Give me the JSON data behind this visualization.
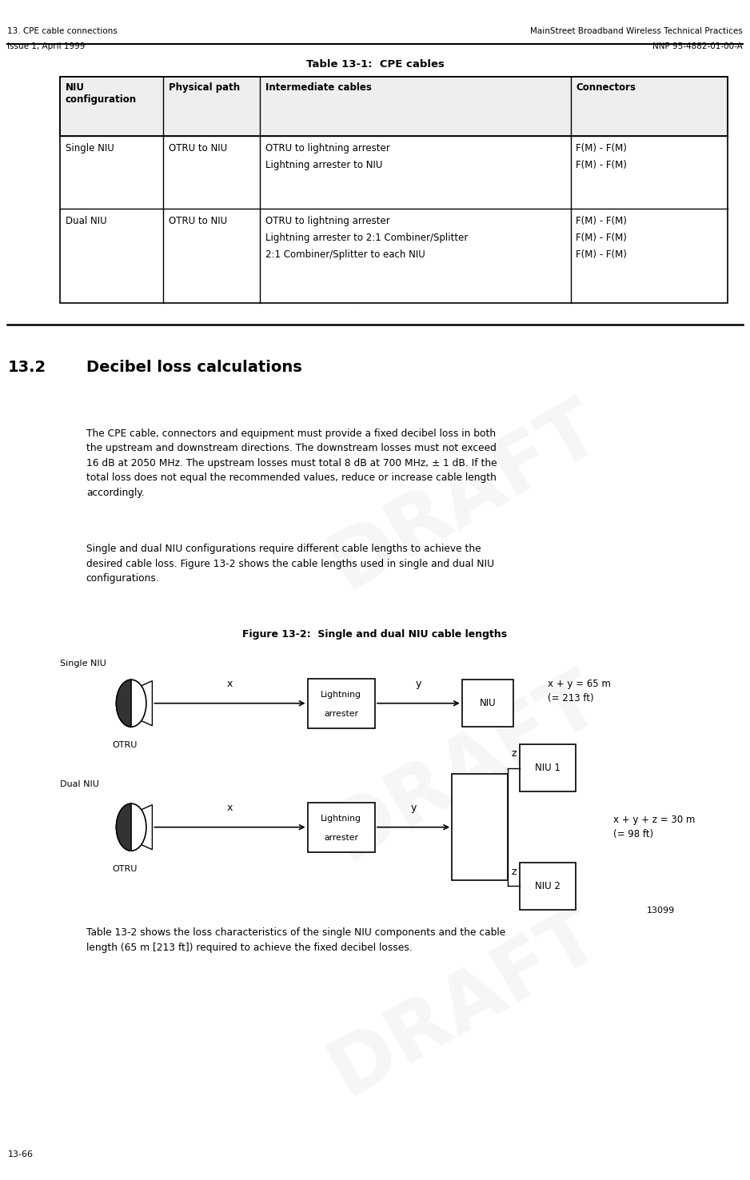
{
  "page_width": 9.38,
  "page_height": 14.76,
  "bg_color": "#ffffff",
  "header_left_line1": "13. CPE cable connections",
  "header_left_line2": "Issue 1, April 1999",
  "header_right_line1": "MainStreet Broadband Wireless Technical Practices",
  "header_right_line2": "NNP 95-4882-01-00-A",
  "table_title": "Table 13-1:  CPE cables",
  "table_headers": [
    "NIU\nconfiguration",
    "Physical path",
    "Intermediate cables",
    "Connectors"
  ],
  "table_col_props": [
    0.155,
    0.145,
    0.465,
    0.185
  ],
  "table_rows": [
    [
      "Single NIU",
      "OTRU to NIU",
      "OTRU to lightning arrester\nLightning arrester to NIU",
      "F(M) - F(M)\nF(M) - F(M)"
    ],
    [
      "Dual NIU",
      "OTRU to NIU",
      "OTRU to lightning arrester\nLightning arrester to 2:1 Combiner/Splitter\n2:1 Combiner/Splitter to each NIU",
      "F(M) - F(M)\nF(M) - F(M)\nF(M) - F(M)"
    ]
  ],
  "section_num": "13.2",
  "section_title": "Decibel loss calculations",
  "para1": "The CPE cable, connectors and equipment must provide a fixed decibel loss in both\nthe upstream and downstream directions. The downstream losses must not exceed\n16 dB at 2050 MHz. The upstream losses must total 8 dB at 700 MHz, ± 1 dB. If the\ntotal loss does not equal the recommended values, reduce or increase cable length\naccordingly.",
  "para2": "Single and dual NIU configurations require different cable lengths to achieve the\ndesired cable loss. Figure 13-2 shows the cable lengths used in single and dual NIU\nconfigurations.",
  "figure_title": "Figure 13-2:  Single and dual NIU cable lengths",
  "figure_number": "13099",
  "last_para": "Table 13-2 shows the loss characteristics of the single NIU components and the cable\nlength (65 m [213 ft]) required to achieve the fixed decibel losses.",
  "footer_left": "13-66",
  "draft_text": "DRAFT"
}
